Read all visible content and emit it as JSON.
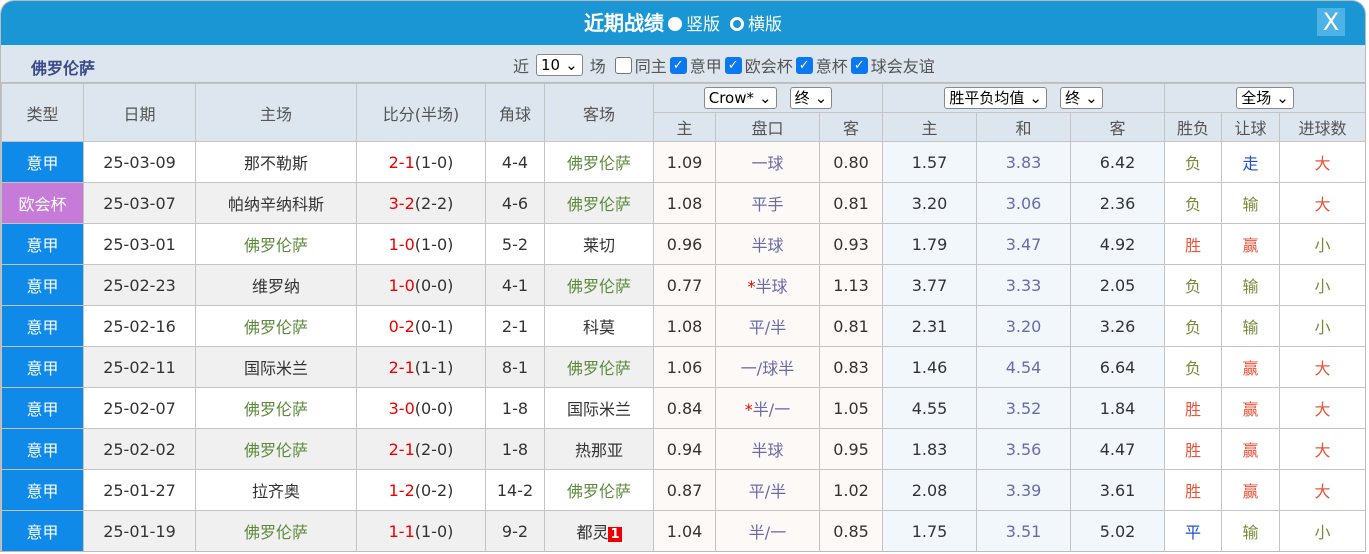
{
  "title": {
    "main": "近期战绩",
    "opt1": "竖版",
    "opt2": "横版",
    "close": "X"
  },
  "filter": {
    "team": "佛罗伦萨",
    "near": "近",
    "count": "10",
    "field": "场",
    "same_home": "同主",
    "leagues": [
      "意甲",
      "欧会杯",
      "意杯",
      "球会友谊"
    ]
  },
  "headers": {
    "type": "类型",
    "date": "日期",
    "home": "主场",
    "score": "比分(半场)",
    "corner": "角球",
    "away": "客场",
    "company": "Crow*",
    "stage1": "终",
    "euro": "胜平负均值",
    "stage2": "终",
    "scope": "全场",
    "sub": [
      "主",
      "盘口",
      "客",
      "主",
      "和",
      "客",
      "胜负",
      "让球",
      "进球数"
    ]
  },
  "colors": {
    "header": "#1a96d4",
    "serie_a": "#0f8ae8",
    "conference": "#c77bd8",
    "team": "#5b8a3a",
    "score": "#e00000"
  },
  "rows": [
    {
      "type": "意甲",
      "date": "25-03-09",
      "home": "那不勒斯",
      "score": "2-1",
      "half": "(1-0)",
      "corner": "4-4",
      "away": "佛罗伦萨",
      "h": "1.09",
      "hcp": "一球",
      "a": "0.80",
      "e1": "1.57",
      "ex": "3.83",
      "e2": "6.42",
      "res": "负",
      "rq": "走",
      "goal": "大"
    },
    {
      "type": "欧会杯",
      "date": "25-03-07",
      "home": "帕纳辛纳科斯",
      "score": "3-2",
      "half": "(2-2)",
      "corner": "4-6",
      "away": "佛罗伦萨",
      "h": "1.08",
      "hcp": "平手",
      "a": "0.81",
      "e1": "3.20",
      "ex": "3.06",
      "e2": "2.36",
      "res": "负",
      "rq": "输",
      "goal": "大"
    },
    {
      "type": "意甲",
      "date": "25-03-01",
      "home": "佛罗伦萨",
      "score": "1-0",
      "half": "(1-0)",
      "corner": "5-2",
      "away": "莱切",
      "h": "0.96",
      "hcp": "半球",
      "a": "0.93",
      "e1": "1.79",
      "ex": "3.47",
      "e2": "4.92",
      "res": "胜",
      "rq": "赢",
      "goal": "小"
    },
    {
      "type": "意甲",
      "date": "25-02-23",
      "home": "维罗纳",
      "score": "1-0",
      "half": "(0-0)",
      "corner": "4-1",
      "away": "佛罗伦萨",
      "h": "0.77",
      "star": "*",
      "hcp": "半球",
      "a": "1.13",
      "e1": "3.77",
      "ex": "3.33",
      "e2": "2.05",
      "res": "负",
      "rq": "输",
      "goal": "小"
    },
    {
      "type": "意甲",
      "date": "25-02-16",
      "home": "佛罗伦萨",
      "score": "0-2",
      "half": "(0-1)",
      "corner": "2-1",
      "away": "科莫",
      "h": "1.08",
      "hcp": "平/半",
      "a": "0.81",
      "e1": "2.31",
      "ex": "3.20",
      "e2": "3.26",
      "res": "负",
      "rq": "输",
      "goal": "小"
    },
    {
      "type": "意甲",
      "date": "25-02-11",
      "home": "国际米兰",
      "score": "2-1",
      "half": "(1-1)",
      "corner": "8-1",
      "away": "佛罗伦萨",
      "h": "1.06",
      "hcp": "一/球半",
      "a": "0.83",
      "e1": "1.46",
      "ex": "4.54",
      "e2": "6.64",
      "res": "负",
      "rq": "赢",
      "goal": "大"
    },
    {
      "type": "意甲",
      "date": "25-02-07",
      "home": "佛罗伦萨",
      "score": "3-0",
      "half": "(0-0)",
      "corner": "1-8",
      "away": "国际米兰",
      "h": "0.84",
      "star": "*",
      "hcp": "半/一",
      "a": "1.05",
      "e1": "4.55",
      "ex": "3.52",
      "e2": "1.84",
      "res": "胜",
      "rq": "赢",
      "goal": "大"
    },
    {
      "type": "意甲",
      "date": "25-02-02",
      "home": "佛罗伦萨",
      "score": "2-1",
      "half": "(2-0)",
      "corner": "1-8",
      "away": "热那亚",
      "h": "0.94",
      "hcp": "半球",
      "a": "0.95",
      "e1": "1.83",
      "ex": "3.56",
      "e2": "4.47",
      "res": "胜",
      "rq": "赢",
      "goal": "大"
    },
    {
      "type": "意甲",
      "date": "25-01-27",
      "home": "拉齐奥",
      "score": "1-2",
      "half": "(0-2)",
      "corner": "14-2",
      "away": "佛罗伦萨",
      "h": "0.87",
      "hcp": "平/半",
      "a": "1.02",
      "e1": "2.08",
      "ex": "3.39",
      "e2": "3.61",
      "res": "胜",
      "rq": "赢",
      "goal": "大"
    },
    {
      "type": "意甲",
      "date": "25-01-19",
      "home": "佛罗伦萨",
      "score": "1-1",
      "half": "(1-0)",
      "corner": "9-2",
      "away": "都灵",
      "badge": "1",
      "h": "1.04",
      "hcp": "半/一",
      "a": "0.85",
      "e1": "1.75",
      "ex": "3.51",
      "e2": "5.02",
      "res": "平",
      "rq": "输",
      "goal": "小"
    }
  ]
}
